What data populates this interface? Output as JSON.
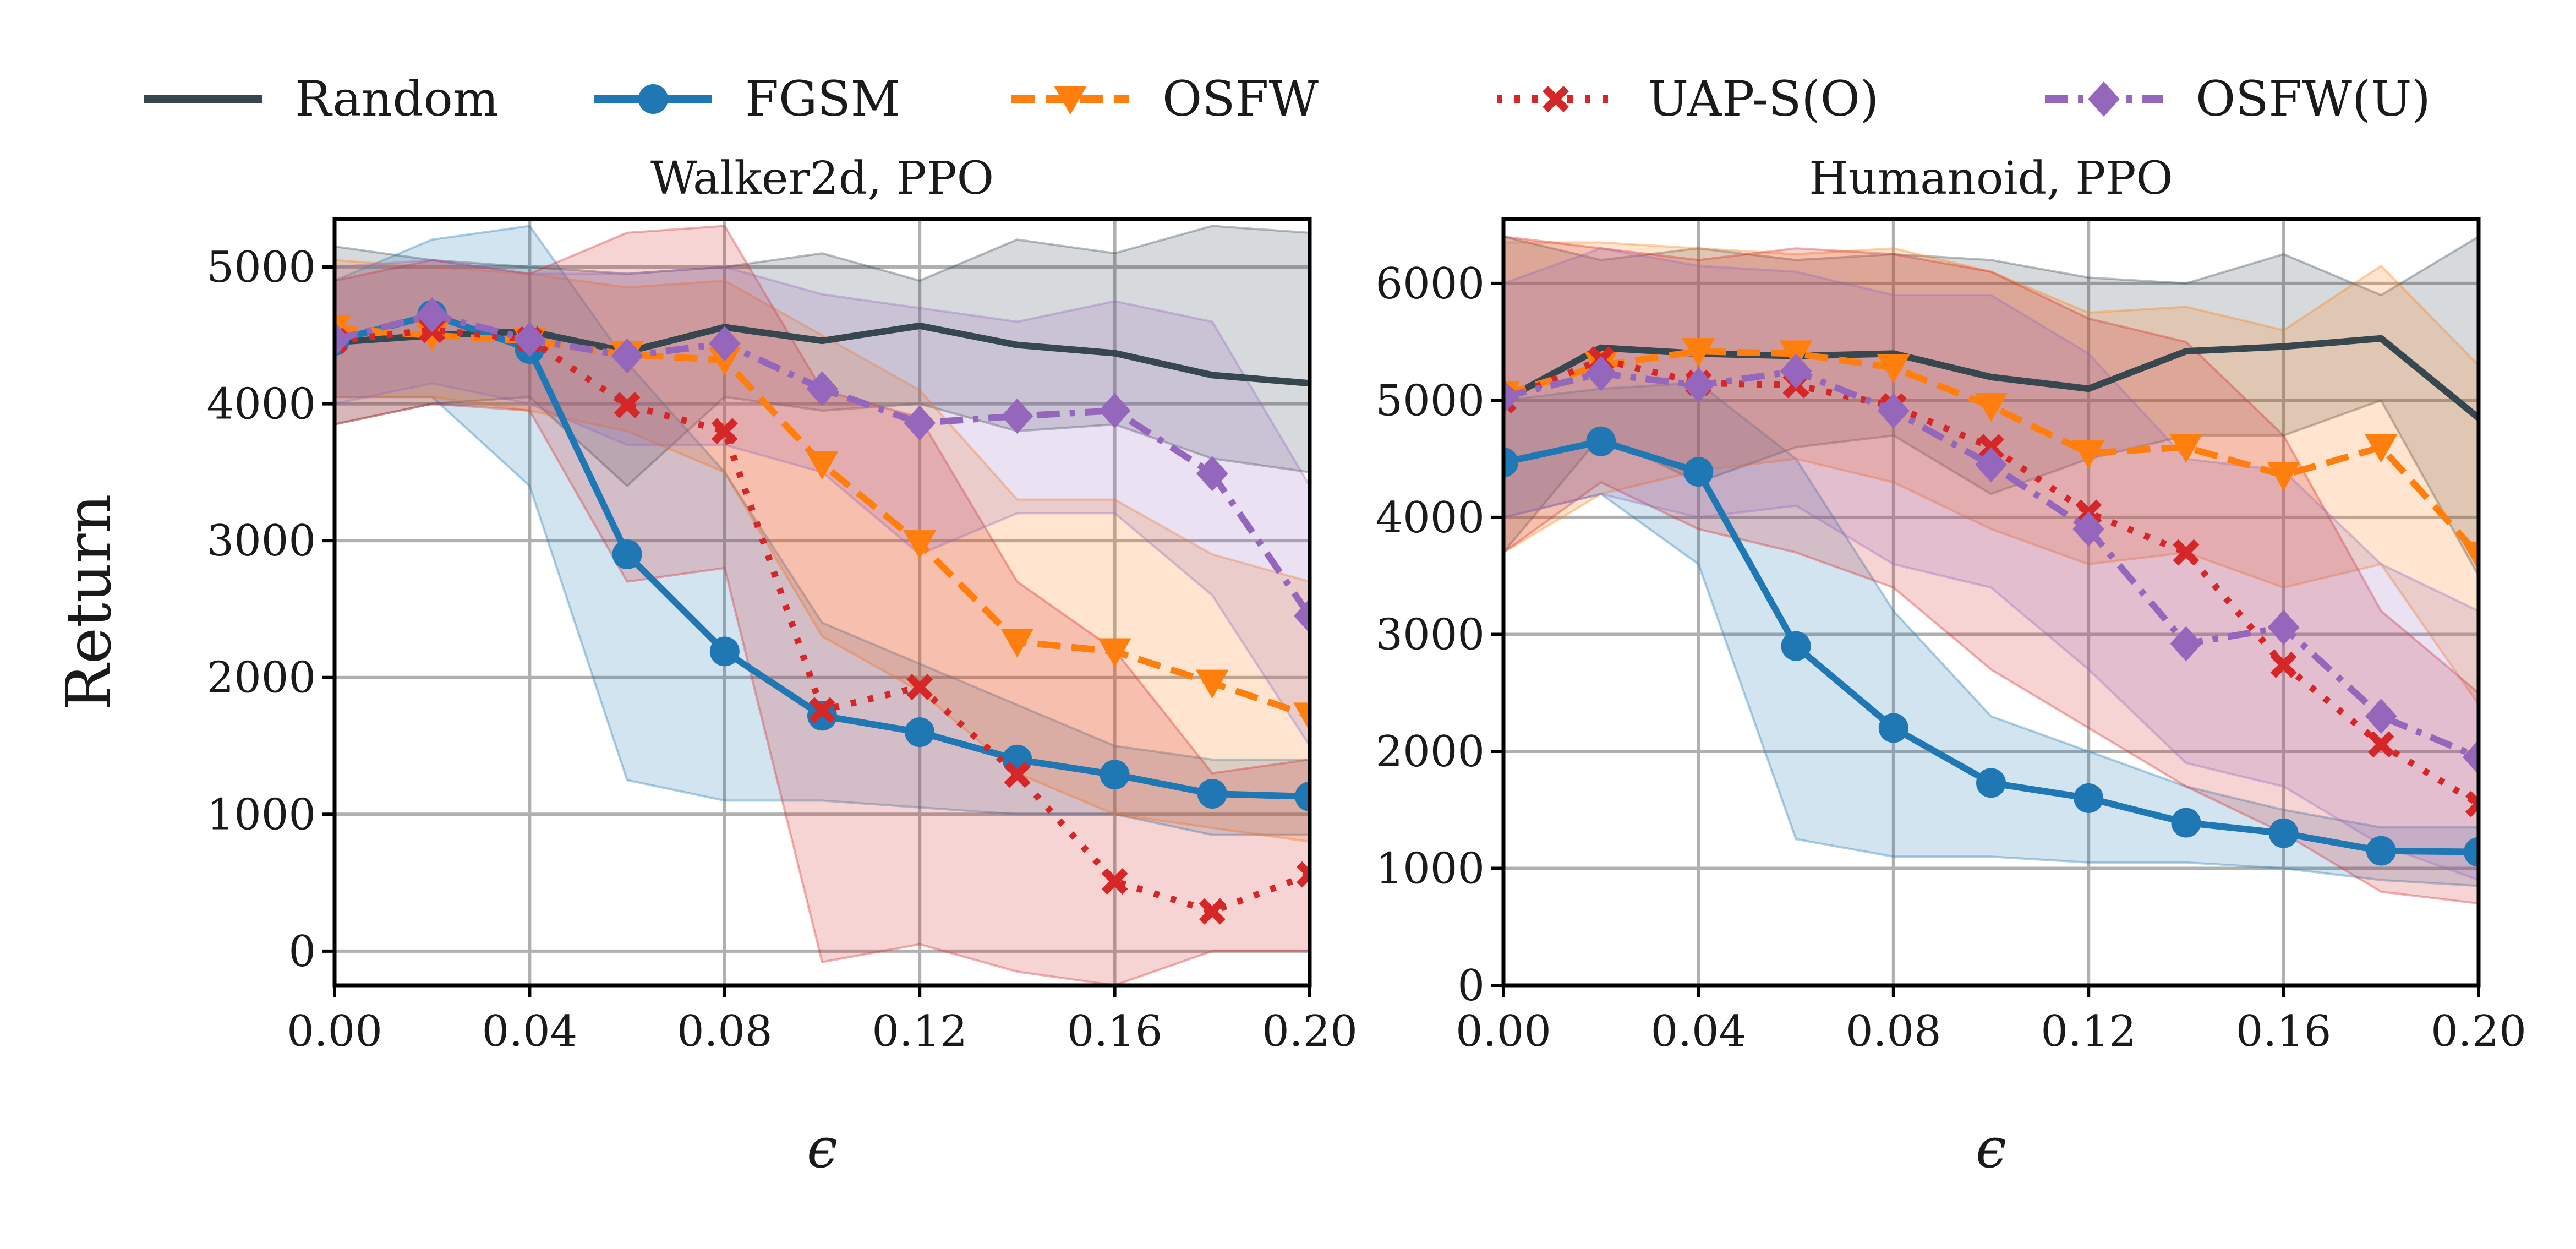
{
  "legend": [
    {
      "label": "Random",
      "color": "#37474f",
      "dash": "solid",
      "marker": "none"
    },
    {
      "label": "FGSM",
      "color": "#1f77b4",
      "dash": "solid",
      "marker": "circle"
    },
    {
      "label": "OSFW",
      "color": "#ff7f0e",
      "dash": "dashed",
      "marker": "triangle-down"
    },
    {
      "label": "UAP-S(O)",
      "color": "#d62728",
      "dash": "dotted",
      "marker": "x"
    },
    {
      "label": "OSFW(U)",
      "color": "#9467bd",
      "dash": "dashdot",
      "marker": "diamond"
    }
  ],
  "chart_data": [
    {
      "type": "line",
      "title": "Walker2d, PPO",
      "xlabel": "ϵ",
      "ylabel": "Return",
      "xlim": [
        0,
        0.2
      ],
      "ylim": [
        -250,
        5350
      ],
      "xticks": [
        0,
        0.04,
        0.08,
        0.12,
        0.16,
        0.2
      ],
      "xtick_labels": [
        "0.00",
        "0.04",
        "0.08",
        "0.12",
        "0.16",
        "0.20"
      ],
      "yticks": [
        0,
        1000,
        2000,
        3000,
        4000,
        5000
      ],
      "ytick_labels": [
        "0",
        "1000",
        "2000",
        "3000",
        "4000",
        "5000"
      ],
      "grid": true,
      "x": [
        0,
        0.02,
        0.04,
        0.06,
        0.08,
        0.1,
        0.12,
        0.14,
        0.16,
        0.18,
        0.2
      ],
      "series": [
        {
          "name": "Random",
          "values": [
            4450,
            4500,
            4530,
            4380,
            4560,
            4460,
            4570,
            4430,
            4370,
            4210,
            4150
          ],
          "lower": [
            3850,
            4000,
            4050,
            3400,
            4050,
            3950,
            4000,
            3800,
            3850,
            3600,
            3500
          ],
          "upper": [
            5150,
            5050,
            5000,
            4950,
            5000,
            5100,
            4900,
            5200,
            5100,
            5300,
            5250
          ]
        },
        {
          "name": "FGSM",
          "values": [
            4460,
            4650,
            4400,
            2900,
            2190,
            1720,
            1600,
            1400,
            1290,
            1150,
            1130
          ],
          "lower": [
            4050,
            4050,
            3400,
            1250,
            1100,
            1100,
            1050,
            1000,
            1000,
            850,
            850
          ],
          "upper": [
            4900,
            5200,
            5300,
            4300,
            3500,
            2400,
            2100,
            1800,
            1500,
            1400,
            1400
          ]
        },
        {
          "name": "OSFW",
          "values": [
            4550,
            4500,
            4460,
            4360,
            4320,
            3560,
            2980,
            2260,
            2190,
            1960,
            1720
          ],
          "lower": [
            4050,
            4050,
            3950,
            3800,
            3500,
            2300,
            1900,
            1300,
            1000,
            900,
            800
          ],
          "upper": [
            5050,
            5000,
            4950,
            4850,
            4900,
            4500,
            4100,
            3300,
            3300,
            2900,
            2700
          ]
        },
        {
          "name": "UAP-S(O)",
          "values": [
            4460,
            4540,
            4470,
            3990,
            3800,
            1760,
            1930,
            1290,
            510,
            290,
            560
          ],
          "lower": [
            3850,
            4000,
            3950,
            2700,
            2800,
            -80,
            50,
            -150,
            -250,
            0,
            0
          ],
          "upper": [
            4900,
            5050,
            4950,
            5250,
            5300,
            4100,
            3900,
            2700,
            2200,
            1300,
            1400
          ]
        },
        {
          "name": "OSFW(U)",
          "values": [
            4470,
            4650,
            4470,
            4350,
            4440,
            4110,
            3860,
            3910,
            3950,
            3490,
            2450
          ],
          "lower": [
            4000,
            4150,
            4000,
            3700,
            3700,
            3500,
            2900,
            3200,
            3200,
            2600,
            1500
          ],
          "upper": [
            5000,
            5050,
            4950,
            4950,
            5000,
            4800,
            4700,
            4600,
            4750,
            4600,
            3400
          ]
        }
      ]
    },
    {
      "type": "line",
      "title": "Humanoid, PPO",
      "xlabel": "ϵ",
      "ylabel": "",
      "xlim": [
        0,
        0.2
      ],
      "ylim": [
        0,
        6550
      ],
      "xticks": [
        0,
        0.04,
        0.08,
        0.12,
        0.16,
        0.2
      ],
      "xtick_labels": [
        "0.00",
        "0.04",
        "0.08",
        "0.12",
        "0.16",
        "0.20"
      ],
      "yticks": [
        0,
        1000,
        2000,
        3000,
        4000,
        5000,
        6000
      ],
      "ytick_labels": [
        "0",
        "1000",
        "2000",
        "3000",
        "4000",
        "5000",
        "6000"
      ],
      "grid": true,
      "x": [
        0,
        0.02,
        0.04,
        0.06,
        0.08,
        0.1,
        0.12,
        0.14,
        0.16,
        0.18,
        0.2
      ],
      "series": [
        {
          "name": "Random",
          "values": [
            5000,
            5450,
            5400,
            5380,
            5400,
            5200,
            5100,
            5420,
            5460,
            5530,
            4850
          ],
          "lower": [
            3700,
            4700,
            4300,
            4600,
            4700,
            4200,
            4500,
            4700,
            4700,
            5000,
            3500
          ],
          "upper": [
            6400,
            6200,
            6300,
            6200,
            6250,
            6200,
            6050,
            6000,
            6250,
            5900,
            6400
          ]
        },
        {
          "name": "FGSM",
          "values": [
            4470,
            4650,
            4390,
            2900,
            2200,
            1730,
            1600,
            1390,
            1300,
            1150,
            1140
          ],
          "lower": [
            4000,
            4200,
            3600,
            1250,
            1100,
            1100,
            1050,
            1050,
            1000,
            900,
            850
          ],
          "upper": [
            5000,
            5100,
            5150,
            4500,
            3200,
            2300,
            2000,
            1700,
            1500,
            1350,
            1350
          ]
        },
        {
          "name": "OSFW",
          "values": [
            5050,
            5300,
            5420,
            5400,
            5280,
            4950,
            4550,
            4600,
            4360,
            4600,
            3680
          ],
          "lower": [
            3700,
            4200,
            4400,
            4500,
            4300,
            3900,
            3600,
            3700,
            3400,
            3600,
            2400
          ],
          "upper": [
            6350,
            6350,
            6300,
            6250,
            6300,
            6100,
            5750,
            5800,
            5600,
            6150,
            5300
          ]
        },
        {
          "name": "UAP-S(O)",
          "values": [
            5000,
            5350,
            5150,
            5130,
            4950,
            4600,
            4040,
            3700,
            2740,
            2060,
            1550
          ],
          "lower": [
            3700,
            4300,
            3900,
            3700,
            3400,
            2700,
            2200,
            1700,
            1300,
            800,
            700
          ],
          "upper": [
            6400,
            6300,
            6200,
            6300,
            6250,
            6100,
            5700,
            5500,
            4700,
            3200,
            2500
          ]
        },
        {
          "name": "OSFW(U)",
          "values": [
            5030,
            5230,
            5130,
            5250,
            4910,
            4450,
            3900,
            2920,
            3060,
            2300,
            1950
          ],
          "lower": [
            4000,
            4200,
            4000,
            4100,
            3600,
            3400,
            2700,
            1900,
            1700,
            1200,
            900
          ],
          "upper": [
            6000,
            6300,
            6150,
            6100,
            5900,
            5900,
            5400,
            4500,
            4400,
            3600,
            3200
          ]
        }
      ]
    }
  ]
}
